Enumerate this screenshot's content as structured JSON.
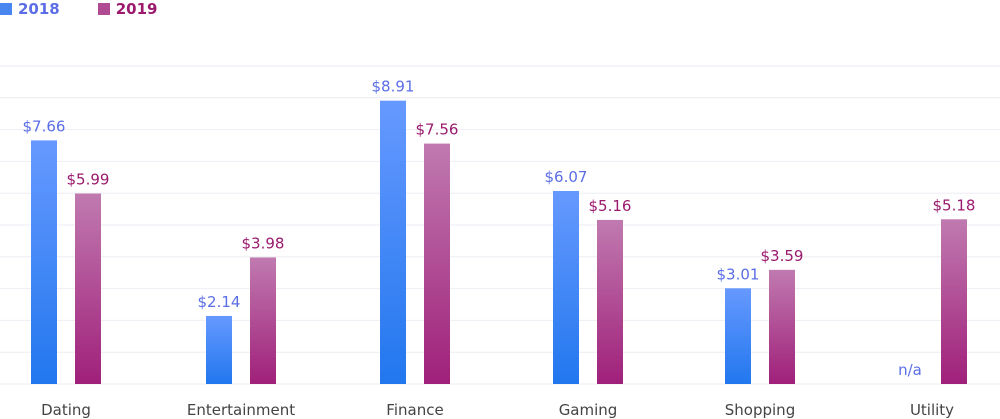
{
  "chart_data": {
    "type": "bar",
    "categories": [
      "Dating",
      "Entertainment",
      "Finance",
      "Gaming",
      "Shopping",
      "Utility"
    ],
    "series": [
      {
        "name": "2018",
        "values": [
          7.66,
          2.14,
          8.91,
          6.07,
          3.01,
          null
        ],
        "labels": [
          "$7.66",
          "$2.14",
          "$8.91",
          "$6.07",
          "$3.01",
          "n/a"
        ]
      },
      {
        "name": "2019",
        "values": [
          5.99,
          3.98,
          7.56,
          5.16,
          3.59,
          5.18
        ],
        "labels": [
          "$5.99",
          "$3.98",
          "$7.56",
          "$5.16",
          "$3.59",
          "$5.18"
        ]
      }
    ],
    "ylim": [
      0,
      10
    ],
    "grid": true,
    "legend": "top-left",
    "colors": {
      "2018": {
        "top": "#6699ff",
        "bottom": "#2277ee",
        "label": "#5b6ee6"
      },
      "2019": {
        "top": "#c07ab0",
        "bottom": "#a0207a",
        "label": "#9b1a6e"
      },
      "grid": "#eeeef4",
      "axis_text": "#444444"
    }
  }
}
